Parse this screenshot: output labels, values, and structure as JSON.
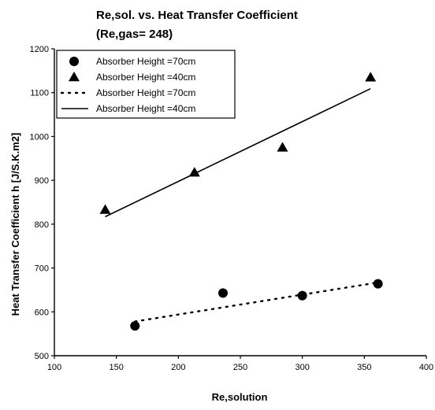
{
  "chart_data": {
    "type": "scatter",
    "title": "Re,sol.  vs. Heat Transfer Coefficient",
    "subtitle": "(Re,gas= 248)",
    "xlabel": "Re,solution",
    "ylabel": "Heat Transfer Coefficient h [J/S.K.m2]",
    "xlim": [
      100,
      400
    ],
    "ylim": [
      500,
      1200
    ],
    "xticks": [
      100,
      150,
      200,
      250,
      300,
      350,
      400
    ],
    "yticks": [
      500,
      600,
      700,
      800,
      900,
      1000,
      1100,
      1200
    ],
    "grid": false,
    "legend_position": "top-left",
    "series": [
      {
        "name": "Absorber Height =70cm",
        "kind": "points",
        "marker": "circle",
        "x": [
          165,
          236,
          300,
          361
        ],
        "y": [
          568,
          643,
          637,
          664
        ]
      },
      {
        "name": "Absorber Height =40cm",
        "kind": "points",
        "marker": "triangle",
        "x": [
          141,
          213,
          284,
          355
        ],
        "y": [
          833,
          918,
          975,
          1135
        ]
      },
      {
        "name": "Absorber Height =70cm",
        "kind": "line",
        "style": "dotted",
        "x": [
          165,
          361
        ],
        "y": [
          578,
          667
        ]
      },
      {
        "name": "Absorber Height =40cm",
        "kind": "line",
        "style": "solid",
        "x": [
          141,
          355
        ],
        "y": [
          817,
          1109
        ]
      }
    ]
  }
}
